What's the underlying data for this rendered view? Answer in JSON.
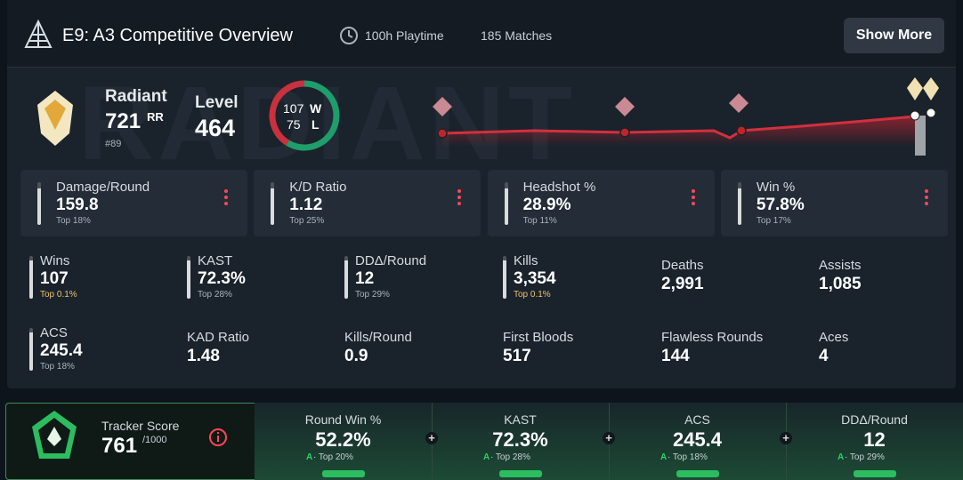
{
  "header": {
    "title": "E9: A3 Competitive Overview",
    "playtime": "100h Playtime",
    "matches": "185 Matches",
    "button": "Show More"
  },
  "rank": {
    "name": "Radiant",
    "rr": "721",
    "rr_unit": "RR",
    "position": "#89"
  },
  "level": {
    "label": "Level",
    "value": "464"
  },
  "record": {
    "wins": 107,
    "wins_label": "W",
    "losses": 75,
    "losses_label": "L"
  },
  "cards": [
    {
      "label": "Damage/Round",
      "value": "159.8",
      "rank": "Top 18%"
    },
    {
      "label": "K/D Ratio",
      "value": "1.12",
      "rank": "Top 25%"
    },
    {
      "label": "Headshot %",
      "value": "28.9%",
      "rank": "Top 11%"
    },
    {
      "label": "Win %",
      "value": "57.8%",
      "rank": "Top 17%"
    }
  ],
  "stats": [
    {
      "label": "Wins",
      "value": "107",
      "rank": "Top 0.1%"
    },
    {
      "label": "KAST",
      "value": "72.3%",
      "rank": "Top 28%"
    },
    {
      "label": "DDΔ/Round",
      "value": "12",
      "rank": "Top 29%"
    },
    {
      "label": "Kills",
      "value": "3,354",
      "rank": "Top 0.1%"
    },
    {
      "label": "Deaths",
      "value": "2,991"
    },
    {
      "label": "Assists",
      "value": "1,085"
    },
    {
      "label": "ACS",
      "value": "245.4",
      "rank": "Top 18%"
    },
    {
      "label": "KAD Ratio",
      "value": "1.48"
    },
    {
      "label": "Kills/Round",
      "value": "0.9"
    },
    {
      "label": "First Bloods",
      "value": "517"
    },
    {
      "label": "Flawless Rounds",
      "value": "144"
    },
    {
      "label": "Aces",
      "value": "4"
    }
  ],
  "tracker_score": {
    "label": "Tracker Score",
    "value": "761",
    "max": "/1000"
  },
  "score_stats": [
    {
      "label": "Round Win %",
      "value": "52.2%",
      "grade": "A",
      "rank": "· Top 20%"
    },
    {
      "label": "KAST",
      "value": "72.3%",
      "grade": "A",
      "rank": "· Top 28%"
    },
    {
      "label": "ACS",
      "value": "245.4",
      "grade": "A",
      "rank": "· Top 18%"
    },
    {
      "label": "DDΔ/Round",
      "value": "12",
      "grade": "A",
      "rank": "· Top 29%"
    }
  ]
}
